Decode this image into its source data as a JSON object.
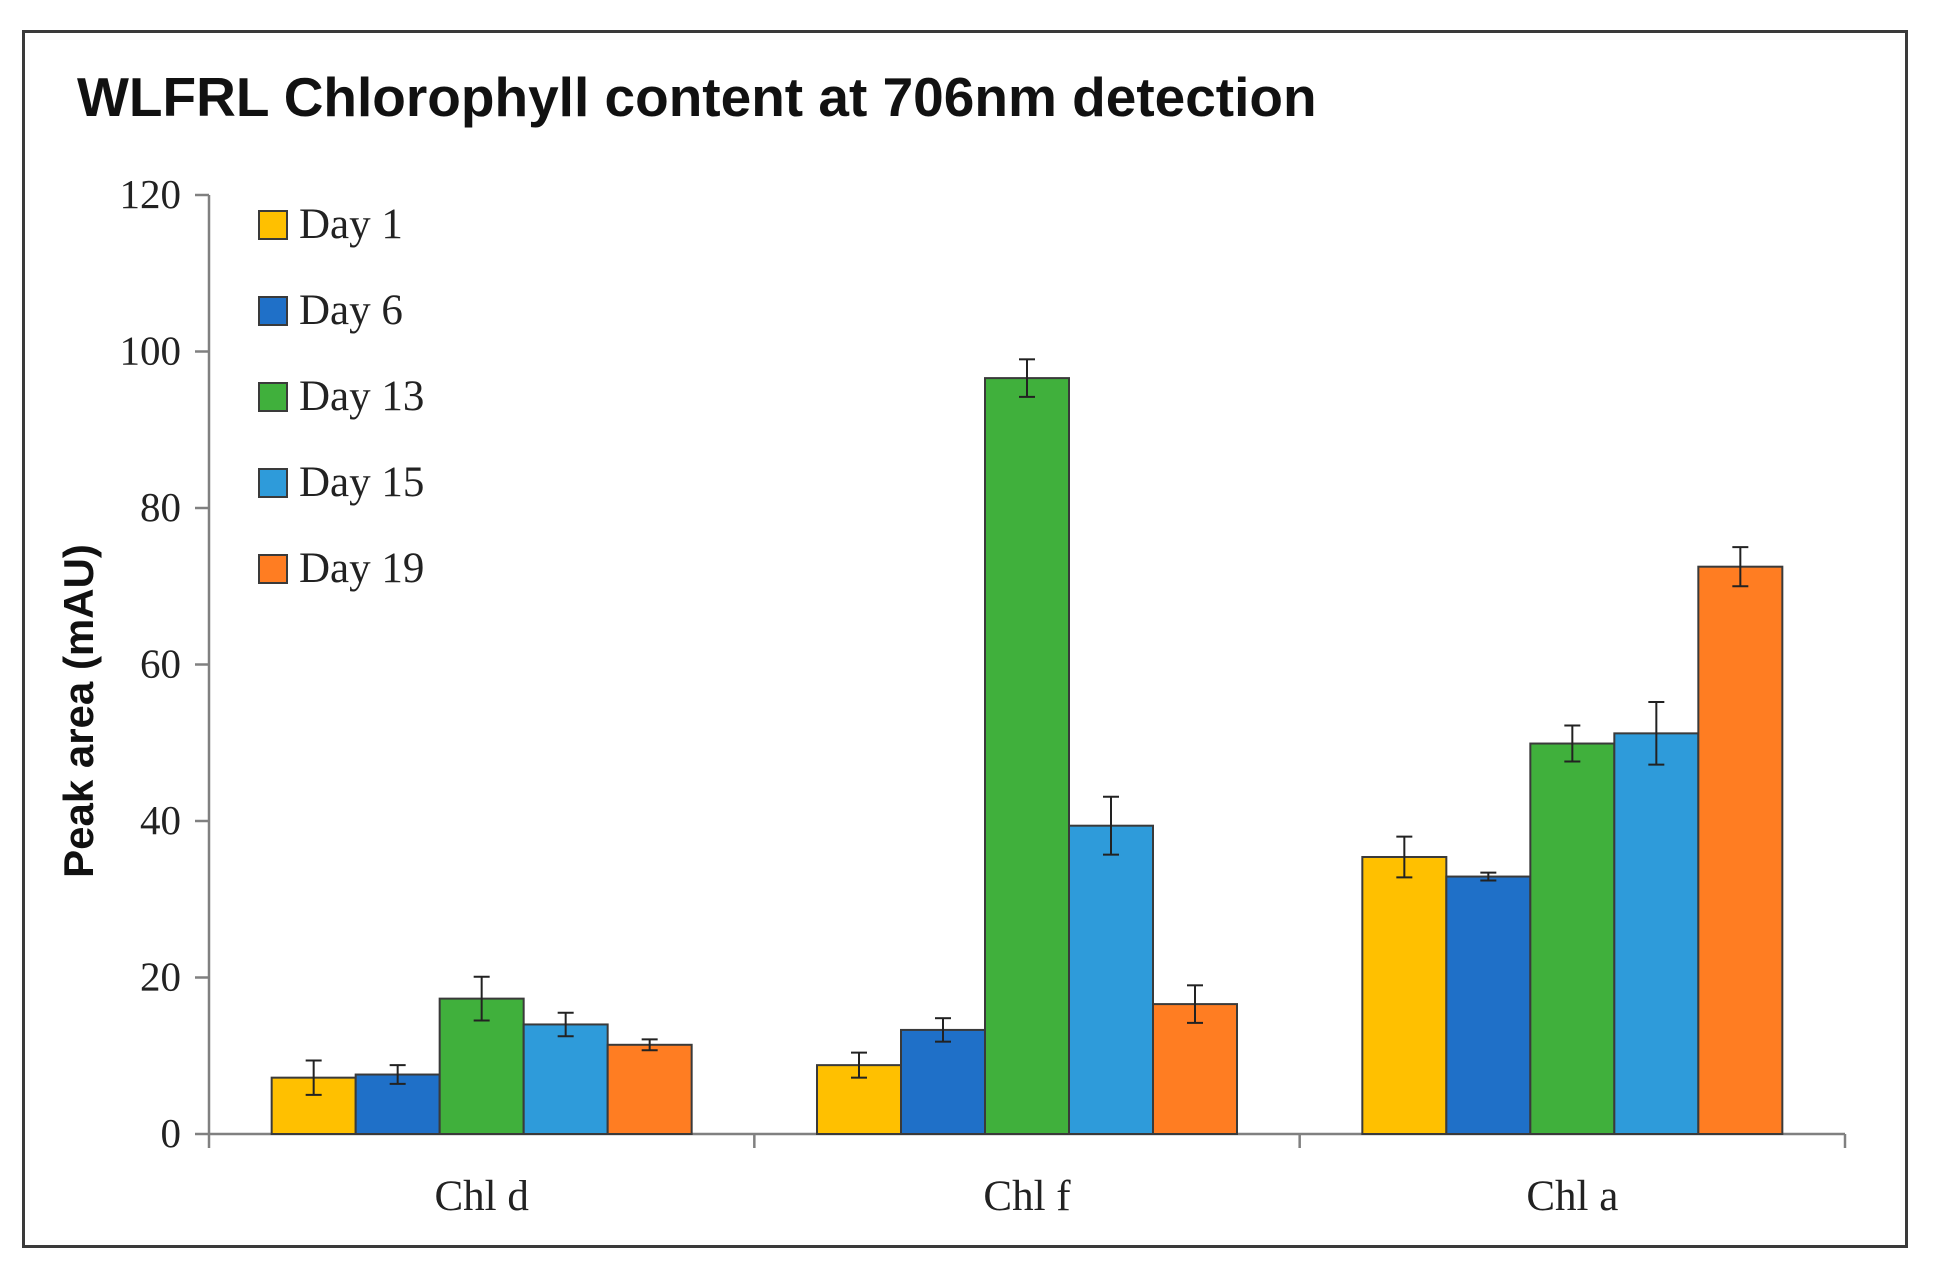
{
  "chart_data": {
    "type": "bar",
    "title": "WLFRL Chlorophyll content at 706nm detection",
    "xlabel": "",
    "ylabel": "Peak area (mAU)",
    "ylim": [
      0,
      120
    ],
    "yticks": [
      0,
      20,
      40,
      60,
      80,
      100,
      120
    ],
    "grid": false,
    "legend_position": "top-left",
    "error_bars": true,
    "categories": [
      "Chl d",
      "Chl f",
      "Chl a"
    ],
    "series": [
      {
        "name": "Day 1",
        "color": "#FFC000",
        "values": [
          7.2,
          8.8,
          35.4
        ],
        "errors": [
          2.2,
          1.6,
          2.6
        ]
      },
      {
        "name": "Day 6",
        "color": "#1F70C8",
        "values": [
          7.6,
          13.3,
          32.9
        ],
        "errors": [
          1.2,
          1.5,
          0.5
        ]
      },
      {
        "name": "Day 13",
        "color": "#40B03C",
        "values": [
          17.3,
          96.6,
          49.9
        ],
        "errors": [
          2.8,
          2.4,
          2.3
        ]
      },
      {
        "name": "Day 15",
        "color": "#2E9BDA",
        "values": [
          14.0,
          39.4,
          51.2
        ],
        "errors": [
          1.5,
          3.7,
          4.0
        ]
      },
      {
        "name": "Day 19",
        "color": "#FF7D22",
        "values": [
          11.4,
          16.6,
          72.5
        ],
        "errors": [
          0.7,
          2.4,
          2.5
        ]
      }
    ]
  }
}
